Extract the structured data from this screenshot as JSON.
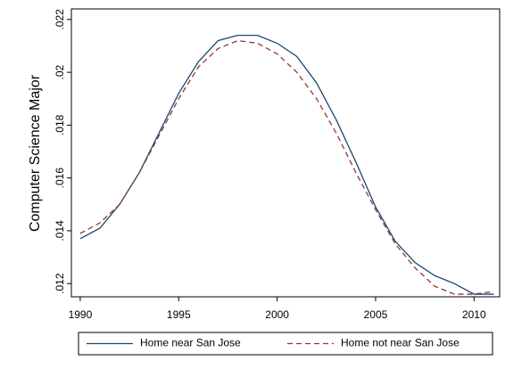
{
  "chart_data": {
    "type": "line",
    "y_label": "Computer Science Major",
    "x": [
      1990,
      1991,
      1992,
      1993,
      1994,
      1995,
      1996,
      1997,
      1998,
      1999,
      2000,
      2001,
      2002,
      2003,
      2004,
      2005,
      2006,
      2007,
      2008,
      2009,
      2010,
      2011
    ],
    "series": [
      {
        "name": "Home near San Jose",
        "color": "#1a476f",
        "dash": "solid",
        "values": [
          0.0137,
          0.0141,
          0.015,
          0.0162,
          0.0177,
          0.0192,
          0.0204,
          0.0212,
          0.0214,
          0.0214,
          0.0211,
          0.0206,
          0.0196,
          0.0182,
          0.0166,
          0.0149,
          0.0136,
          0.0128,
          0.0123,
          0.012,
          0.0116,
          0.0116
        ]
      },
      {
        "name": "Home not near San Jose",
        "color": "#90353b",
        "dash": "dashed",
        "values": [
          0.0139,
          0.0143,
          0.015,
          0.0162,
          0.0176,
          0.019,
          0.0202,
          0.0209,
          0.0212,
          0.0211,
          0.0207,
          0.02,
          0.019,
          0.0177,
          0.0162,
          0.0148,
          0.0135,
          0.0126,
          0.0119,
          0.0116,
          0.0116,
          0.0117
        ]
      }
    ],
    "xlim": [
      1989.55,
      2011.3
    ],
    "xticks": [
      1990,
      1995,
      2000,
      2005,
      2010
    ],
    "ylim": [
      0.0115,
      0.0224
    ],
    "yticks": [
      {
        "value": 0.012,
        "label": ".012"
      },
      {
        "value": 0.014,
        "label": ".014"
      },
      {
        "value": 0.016,
        "label": ".016"
      },
      {
        "value": 0.018,
        "label": ".018"
      },
      {
        "value": 0.02,
        "label": ".02"
      },
      {
        "value": 0.022,
        "label": ".022"
      }
    ],
    "grid": false,
    "legend": "bottom"
  }
}
